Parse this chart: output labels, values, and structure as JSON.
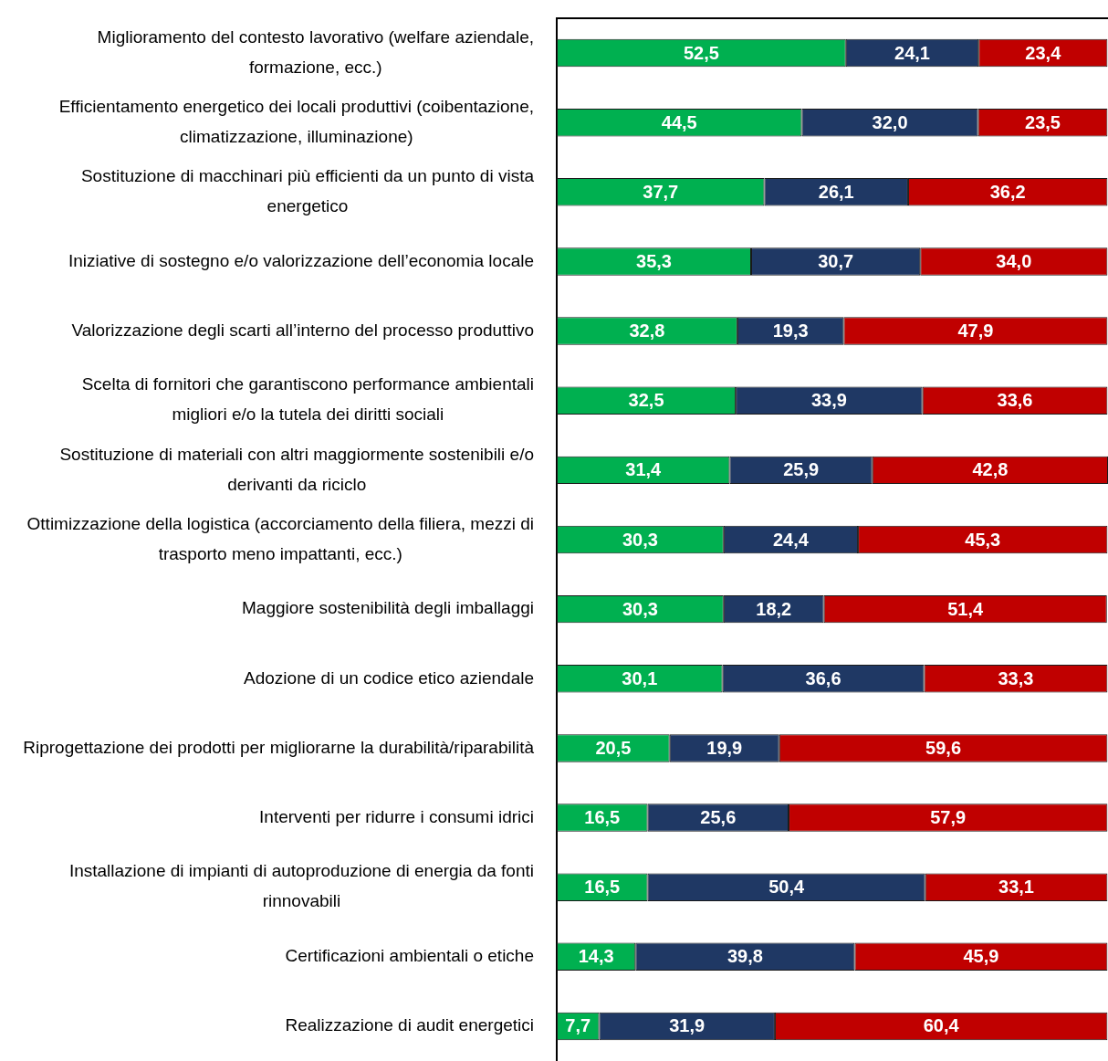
{
  "chart_data": {
    "type": "bar",
    "orientation": "horizontal",
    "stacked": true,
    "legend": false,
    "grid": false,
    "categories": [
      "Miglioramento del contesto lavorativo (welfare aziendale, formazione, ecc.)",
      "Efficientamento energetico dei locali produttivi (coibentazione, climatizzazione, illuminazione)",
      "Sostituzione di macchinari più efficienti da un punto di vista energetico",
      "Iniziative di sostegno e/o valorizzazione dell’economia locale",
      "Valorizzazione degli scarti all’interno del processo produttivo",
      "Scelta di fornitori che garantiscono performance ambientali migliori e/o la tutela dei diritti sociali",
      "Sostituzione di materiali con altri maggiormente sostenibili e/o derivanti da riciclo",
      "Ottimizzazione della logistica (accorciamento della filiera, mezzi di trasporto meno impattanti, ecc.)",
      "Maggiore sostenibilità degli imballaggi",
      "Adozione di un codice etico aziendale",
      "Riprogettazione dei prodotti per migliorarne la durabilità/riparabilità",
      "Interventi per ridurre i consumi idrici",
      "Installazione di impianti di autoproduzione di energia da fonti rinnovabili",
      "Certificazioni ambientali o etiche",
      "Realizzazione di audit energetici"
    ],
    "series": [
      {
        "color": "#00b050",
        "values": [
          52.5,
          44.5,
          37.7,
          35.3,
          32.8,
          32.5,
          31.4,
          30.3,
          30.3,
          30.1,
          20.5,
          16.5,
          16.5,
          14.3,
          7.7
        ],
        "value_labels": [
          "52,5",
          "44,5",
          "37,7",
          "35,3",
          "32,8",
          "32,5",
          "31,4",
          "30,3",
          "30,3",
          "30,1",
          "20,5",
          "16,5",
          "16,5",
          "14,3",
          "7,7"
        ]
      },
      {
        "color": "#1f3864",
        "values": [
          24.1,
          32.0,
          26.1,
          30.7,
          19.3,
          33.9,
          25.9,
          24.4,
          18.2,
          36.6,
          19.9,
          25.6,
          50.4,
          39.8,
          31.9
        ],
        "value_labels": [
          "24,1",
          "32,0",
          "26,1",
          "30,7",
          "19,3",
          "33,9",
          "25,9",
          "24,4",
          "18,2",
          "36,6",
          "19,9",
          "25,6",
          "50,4",
          "39,8",
          "31,9"
        ]
      },
      {
        "color": "#c00000",
        "values": [
          23.4,
          23.5,
          36.2,
          34.0,
          47.9,
          33.6,
          42.8,
          45.3,
          51.4,
          33.3,
          59.6,
          57.9,
          33.1,
          45.9,
          60.4
        ],
        "value_labels": [
          "23,4",
          "23,5",
          "36,2",
          "34,0",
          "47,9",
          "33,6",
          "42,8",
          "45,3",
          "51,4",
          "33,3",
          "59,6",
          "57,9",
          "33,1",
          "45,9",
          "60,4"
        ]
      }
    ]
  }
}
